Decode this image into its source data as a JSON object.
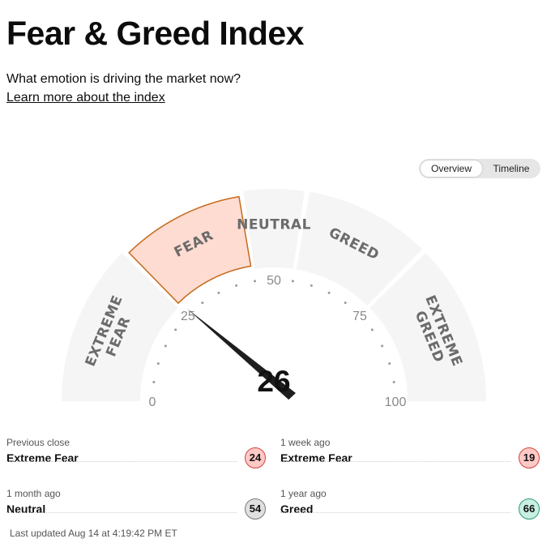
{
  "header": {
    "title": "Fear & Greed Index",
    "subtitle": "What emotion is driving the market now?",
    "learn_more": "Learn more about the index"
  },
  "toggle": {
    "options": [
      "Overview",
      "Timeline"
    ],
    "selected": "Overview"
  },
  "gauge": {
    "value": 26,
    "value_text": "26",
    "current_segment": "FEAR",
    "segments": [
      {
        "label_line1": "EXTREME",
        "label_line2": "FEAR",
        "from": 0,
        "to": 25
      },
      {
        "label_line1": "FEAR",
        "label_line2": "",
        "from": 25,
        "to": 45
      },
      {
        "label_line1": "NEUTRAL",
        "label_line2": "",
        "from": 45,
        "to": 55
      },
      {
        "label_line1": "GREED",
        "label_line2": "",
        "from": 55,
        "to": 75
      },
      {
        "label_line1": "EXTREME",
        "label_line2": "GREED",
        "from": 75,
        "to": 100
      }
    ],
    "scale_labels": [
      "0",
      "25",
      "50",
      "75",
      "100"
    ],
    "colors": {
      "track": "#f5f5f5",
      "active_fill": "#ffdcd2",
      "active_border": "#c66a1c",
      "needle": "#1e1e1e"
    }
  },
  "history": [
    {
      "label": "Previous close",
      "value": "Extreme Fear",
      "score": "24",
      "badge_bg": "#ffc9c6",
      "badge_border": "#d2463c"
    },
    {
      "label": "1 week ago",
      "value": "Extreme Fear",
      "score": "19",
      "badge_bg": "#ffc9c6",
      "badge_border": "#d2463c"
    },
    {
      "label": "1 month ago",
      "value": "Neutral",
      "score": "54",
      "badge_bg": "#e0e0e0",
      "badge_border": "#7a7a7a"
    },
    {
      "label": "1 year ago",
      "value": "Greed",
      "score": "66",
      "badge_bg": "#c9efe2",
      "badge_border": "#2a9d76"
    }
  ],
  "last_updated": "Last updated Aug 14 at 4:19:42 PM ET"
}
